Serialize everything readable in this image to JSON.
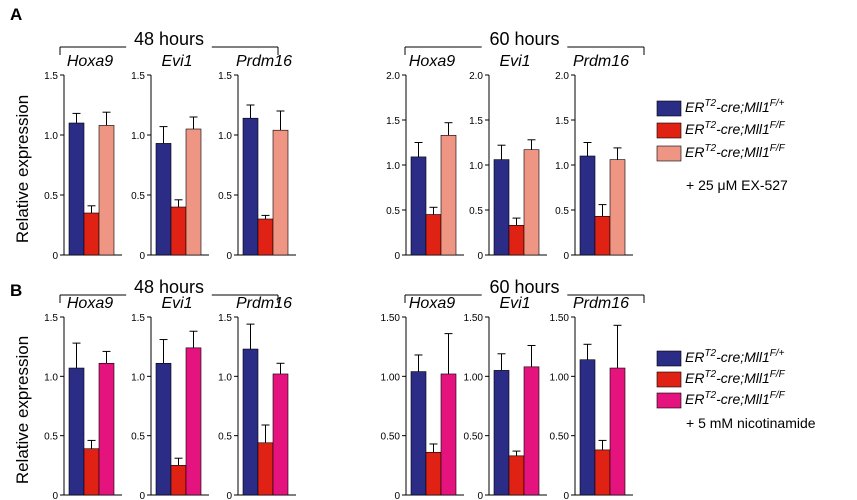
{
  "panels": [
    {
      "letter": "A",
      "groups": [
        {
          "header": "48 hours",
          "charts": [
            {
              "gene": "Hoxa9",
              "ticks": [
                "0",
                "0.5",
                "1.0",
                "1.5"
              ],
              "ylim": [
                0,
                1.5
              ]
            },
            {
              "gene": "Evi1",
              "ticks": [
                "0",
                "0.5",
                "1.0",
                "1.5"
              ],
              "ylim": [
                0,
                1.5
              ]
            },
            {
              "gene": "Prdm16",
              "ticks": [
                "0",
                "0.5",
                "1.0",
                "1.5"
              ],
              "ylim": [
                0,
                1.5
              ]
            }
          ]
        },
        {
          "header": "60 hours",
          "charts": [
            {
              "gene": "Hoxa9",
              "ticks": [
                "0",
                "0.5",
                "1.0",
                "1.5",
                "2.0"
              ],
              "ylim": [
                0,
                2.0
              ]
            },
            {
              "gene": "Evi1",
              "ticks": [
                "0",
                "0.5",
                "1.0",
                "1.5",
                "2.0"
              ],
              "ylim": [
                0,
                2.0
              ]
            },
            {
              "gene": "Prdm16",
              "ticks": [
                "0",
                "0.5",
                "1.0",
                "1.5",
                "2.0"
              ],
              "ylim": [
                0,
                2.0
              ]
            }
          ]
        }
      ],
      "legend": [
        {
          "base": "ER",
          "sup1": "T2",
          "mid": "-cre;Mll1",
          "sup2": "F/+",
          "color": "#2B2C86"
        },
        {
          "base": "ER",
          "sup1": "T2",
          "mid": "-cre;Mll1",
          "sup2": "F/F",
          "color": "#E02214"
        },
        {
          "base": "ER",
          "sup1": "T2",
          "mid": "-cre;Mll1",
          "sup2": "F/F",
          "color": "#EE9584"
        }
      ],
      "legend_note": "+ 25 μM EX-527"
    },
    {
      "letter": "B",
      "groups": [
        {
          "header": "48 hours",
          "charts": [
            {
              "gene": "Hoxa9",
              "ticks": [
                "0",
                "0.5",
                "1.0",
                "1.5"
              ],
              "ylim": [
                0,
                1.5
              ]
            },
            {
              "gene": "Evi1",
              "ticks": [
                "0",
                "0.5",
                "1.0",
                "1.5"
              ],
              "ylim": [
                0,
                1.5
              ]
            },
            {
              "gene": "Prdm16",
              "ticks": [
                "0",
                "0.5",
                "1.0",
                "1.5"
              ],
              "ylim": [
                0,
                1.5
              ]
            }
          ]
        },
        {
          "header": "60 hours",
          "charts": [
            {
              "gene": "Hoxa9",
              "ticks": [
                "0",
                "0.50",
                "1.00",
                "1.50"
              ],
              "ylim": [
                0,
                1.5
              ]
            },
            {
              "gene": "Evi1",
              "ticks": [
                "0",
                "0.50",
                "1.00",
                "1.50"
              ],
              "ylim": [
                0,
                1.5
              ]
            },
            {
              "gene": "Prdm16",
              "ticks": [
                "0",
                "0.50",
                "1.00",
                "1.50"
              ],
              "ylim": [
                0,
                1.5
              ]
            }
          ]
        }
      ],
      "legend": [
        {
          "base": "ER",
          "sup1": "T2",
          "mid": "-cre;Mll1",
          "sup2": "F/+",
          "color": "#2B2C86"
        },
        {
          "base": "ER",
          "sup1": "T2",
          "mid": "-cre;Mll1",
          "sup2": "F/F",
          "color": "#E02214"
        },
        {
          "base": "ER",
          "sup1": "T2",
          "mid": "-cre;Mll1",
          "sup2": "F/F",
          "color": "#E5137E"
        }
      ],
      "legend_note": "+ 5 mM nicotinamide"
    }
  ],
  "ylabel": "Relative expression",
  "chart_data": [
    {
      "type": "bar",
      "panel": "A",
      "time": "48 hours",
      "title": "Hoxa9",
      "ylim": [
        0,
        1.5
      ],
      "series": [
        {
          "value": 1.1,
          "error": 0.08,
          "color": "#2B2C86"
        },
        {
          "value": 0.35,
          "error": 0.06,
          "color": "#E02214"
        },
        {
          "value": 1.08,
          "error": 0.11,
          "color": "#EE9584"
        }
      ]
    },
    {
      "type": "bar",
      "panel": "A",
      "time": "48 hours",
      "title": "Evi1",
      "ylim": [
        0,
        1.5
      ],
      "series": [
        {
          "value": 0.93,
          "error": 0.14,
          "color": "#2B2C86"
        },
        {
          "value": 0.4,
          "error": 0.06,
          "color": "#E02214"
        },
        {
          "value": 1.05,
          "error": 0.1,
          "color": "#EE9584"
        }
      ]
    },
    {
      "type": "bar",
      "panel": "A",
      "time": "48 hours",
      "title": "Prdm16",
      "ylim": [
        0,
        1.5
      ],
      "series": [
        {
          "value": 1.14,
          "error": 0.11,
          "color": "#2B2C86"
        },
        {
          "value": 0.3,
          "error": 0.03,
          "color": "#E02214"
        },
        {
          "value": 1.04,
          "error": 0.16,
          "color": "#EE9584"
        }
      ]
    },
    {
      "type": "bar",
      "panel": "A",
      "time": "60 hours",
      "title": "Hoxa9",
      "ylim": [
        0,
        2.0
      ],
      "series": [
        {
          "value": 1.09,
          "error": 0.16,
          "color": "#2B2C86"
        },
        {
          "value": 0.45,
          "error": 0.08,
          "color": "#E02214"
        },
        {
          "value": 1.33,
          "error": 0.14,
          "color": "#EE9584"
        }
      ]
    },
    {
      "type": "bar",
      "panel": "A",
      "time": "60 hours",
      "title": "Evi1",
      "ylim": [
        0,
        2.0
      ],
      "series": [
        {
          "value": 1.06,
          "error": 0.16,
          "color": "#2B2C86"
        },
        {
          "value": 0.33,
          "error": 0.08,
          "color": "#E02214"
        },
        {
          "value": 1.17,
          "error": 0.11,
          "color": "#EE9584"
        }
      ]
    },
    {
      "type": "bar",
      "panel": "A",
      "time": "60 hours",
      "title": "Prdm16",
      "ylim": [
        0,
        2.0
      ],
      "series": [
        {
          "value": 1.1,
          "error": 0.15,
          "color": "#2B2C86"
        },
        {
          "value": 0.43,
          "error": 0.13,
          "color": "#E02214"
        },
        {
          "value": 1.06,
          "error": 0.13,
          "color": "#EE9584"
        }
      ]
    },
    {
      "type": "bar",
      "panel": "B",
      "time": "48 hours",
      "title": "Hoxa9",
      "ylim": [
        0,
        1.5
      ],
      "series": [
        {
          "value": 1.07,
          "error": 0.21,
          "color": "#2B2C86"
        },
        {
          "value": 0.39,
          "error": 0.07,
          "color": "#E02214"
        },
        {
          "value": 1.11,
          "error": 0.1,
          "color": "#E5137E"
        }
      ]
    },
    {
      "type": "bar",
      "panel": "B",
      "time": "48 hours",
      "title": "Evi1",
      "ylim": [
        0,
        1.5
      ],
      "series": [
        {
          "value": 1.11,
          "error": 0.2,
          "color": "#2B2C86"
        },
        {
          "value": 0.25,
          "error": 0.06,
          "color": "#E02214"
        },
        {
          "value": 1.24,
          "error": 0.14,
          "color": "#E5137E"
        }
      ]
    },
    {
      "type": "bar",
      "panel": "B",
      "time": "48 hours",
      "title": "Prdm16",
      "ylim": [
        0,
        1.5
      ],
      "series": [
        {
          "value": 1.23,
          "error": 0.21,
          "color": "#2B2C86"
        },
        {
          "value": 0.44,
          "error": 0.15,
          "color": "#E02214"
        },
        {
          "value": 1.02,
          "error": 0.09,
          "color": "#E5137E"
        }
      ]
    },
    {
      "type": "bar",
      "panel": "B",
      "time": "60 hours",
      "title": "Hoxa9",
      "ylim": [
        0,
        1.5
      ],
      "series": [
        {
          "value": 1.04,
          "error": 0.14,
          "color": "#2B2C86"
        },
        {
          "value": 0.36,
          "error": 0.07,
          "color": "#E02214"
        },
        {
          "value": 1.02,
          "error": 0.34,
          "color": "#E5137E"
        }
      ]
    },
    {
      "type": "bar",
      "panel": "B",
      "time": "60 hours",
      "title": "Evi1",
      "ylim": [
        0,
        1.5
      ],
      "series": [
        {
          "value": 1.05,
          "error": 0.14,
          "color": "#2B2C86"
        },
        {
          "value": 0.33,
          "error": 0.04,
          "color": "#E02214"
        },
        {
          "value": 1.08,
          "error": 0.18,
          "color": "#E5137E"
        }
      ]
    },
    {
      "type": "bar",
      "panel": "B",
      "time": "60 hours",
      "title": "Prdm16",
      "ylim": [
        0,
        1.5
      ],
      "series": [
        {
          "value": 1.14,
          "error": 0.13,
          "color": "#2B2C86"
        },
        {
          "value": 0.38,
          "error": 0.08,
          "color": "#E02214"
        },
        {
          "value": 1.07,
          "error": 0.36,
          "color": "#E5137E"
        }
      ]
    }
  ]
}
